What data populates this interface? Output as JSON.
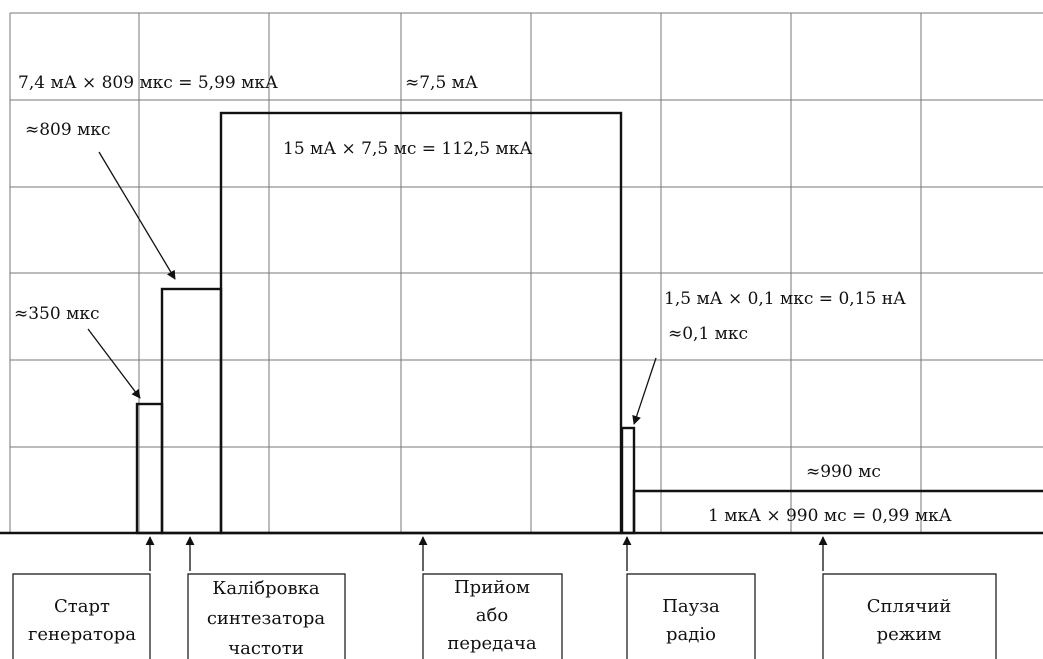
{
  "annotations": {
    "calibration_energy": "7,4 мА × 809 мкс = 5,99 мкА",
    "peak_current": "≈7,5 мА",
    "calibration_duration": "≈809 мкс",
    "rxtx_energy": "15 мА × 7,5 мс = 112,5 мкА",
    "startup_duration": "≈350 мкс",
    "pause_energy": "1,5 мА × 0,1 мкс = 0,15 нА",
    "pause_duration": "≈0,1 мкс",
    "sleep_duration": "≈990 мс",
    "sleep_energy": "1 мкА × 990 мс = 0,99 мкА"
  },
  "phases": {
    "start": [
      "Старт",
      "генератора"
    ],
    "calibration": [
      "Калібровка",
      "синтезатора",
      "частоти"
    ],
    "rxtx": [
      "Прийом",
      "або",
      "передача"
    ],
    "pause": [
      "Пауза",
      "радіо"
    ],
    "sleep": [
      "Сплячий",
      "режим"
    ]
  }
}
